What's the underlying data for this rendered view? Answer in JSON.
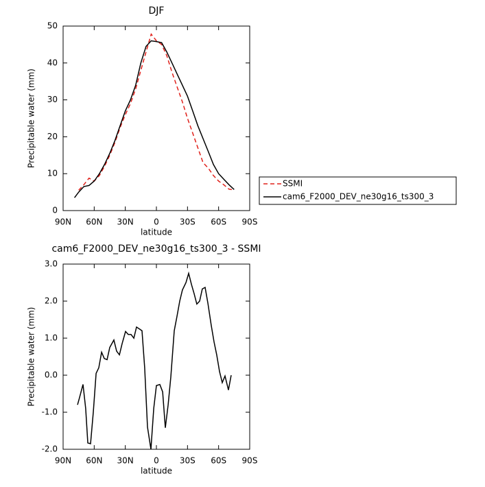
{
  "chart_data": [
    {
      "type": "line",
      "title": "DJF",
      "xlabel": "latitude",
      "ylabel": "Precipitable water (mm)",
      "x": [
        79,
        75,
        70,
        65,
        60,
        55,
        50,
        45,
        40,
        35,
        30,
        25,
        20,
        15,
        10,
        5,
        0,
        -5,
        -10,
        -15,
        -20,
        -25,
        -30,
        -35,
        -40,
        -45,
        -50,
        -55,
        -60,
        -65,
        -70,
        -75
      ],
      "series": [
        {
          "name": "SSMI",
          "color": "#e0201a",
          "dash": true,
          "values": [
            null,
            5.5,
            7,
            8.8,
            8,
            9.5,
            12,
            15,
            18.5,
            22.5,
            26,
            29,
            33,
            38,
            43,
            47.8,
            46,
            45,
            42,
            37.5,
            33.5,
            29.5,
            25,
            21,
            17,
            13,
            11.5,
            9.5,
            8,
            7,
            5.8,
            5.6
          ]
        },
        {
          "name": "cam6_F2000_DEV_ne30g16_ts300_3",
          "color": "#000000",
          "dash": false,
          "values": [
            3.5,
            5,
            6.5,
            6.8,
            8,
            10,
            12.5,
            15.5,
            19,
            23,
            27,
            30,
            34,
            40,
            44.5,
            46,
            45.8,
            45.5,
            43,
            40,
            37,
            34,
            31,
            27,
            23,
            19.5,
            16,
            12.5,
            10,
            8.5,
            7,
            5.7
          ]
        }
      ],
      "xlim": [
        90,
        -90
      ],
      "xticks": [
        {
          "value": 90,
          "label": "90N"
        },
        {
          "value": 60,
          "label": "60N"
        },
        {
          "value": 30,
          "label": "30N"
        },
        0,
        {
          "value": -30,
          "label": "30S"
        },
        {
          "value": -60,
          "label": "60S"
        },
        {
          "value": -90,
          "label": "90S"
        }
      ],
      "ylim": [
        0,
        50
      ],
      "yticks": [
        0,
        10,
        20,
        30,
        40,
        50
      ],
      "legend": "right"
    },
    {
      "type": "line",
      "title": "cam6_F2000_DEV_ne30g16_ts300_3 - SSMI",
      "xlabel": "latitude",
      "ylabel": "Precipitable water (mm)",
      "x": [
        76.1,
        74.1,
        70.8,
        68.2,
        66.2,
        63.5,
        60.9,
        58.2,
        55.6,
        52.9,
        50.3,
        47.6,
        45.0,
        41.0,
        38.4,
        35.7,
        33.1,
        29.8,
        27.1,
        24.5,
        21.8,
        19.2,
        16.5,
        13.9,
        11.3,
        8.6,
        5.3,
        2.6,
        0,
        -3.3,
        -6.0,
        -8.6,
        -11.3,
        -13.9,
        -17.2,
        -19.9,
        -22.5,
        -25.1,
        -28.5,
        -31.1,
        -33.8,
        -36.4,
        -39.0,
        -41.7,
        -44.3,
        -47.0,
        -49.6,
        -52.9,
        -55.6,
        -58.2,
        -60.9,
        -63.5,
        -66.2,
        -69.5,
        -72.1
      ],
      "series": [
        {
          "color": "#000000",
          "dash": false,
          "values": [
            -0.8,
            -0.6,
            -0.25,
            -0.9,
            -1.83,
            -1.85,
            -1.0,
            0.05,
            0.2,
            0.62,
            0.45,
            0.42,
            0.75,
            0.95,
            0.65,
            0.55,
            0.85,
            1.18,
            1.1,
            1.1,
            1.0,
            1.3,
            1.25,
            1.2,
            0.2,
            -1.4,
            -2.0,
            -0.9,
            -0.28,
            -0.25,
            -0.45,
            -1.42,
            -0.8,
            -0.05,
            1.2,
            1.6,
            2.0,
            2.3,
            2.5,
            2.75,
            2.45,
            2.2,
            1.92,
            2.0,
            2.33,
            2.37,
            1.95,
            1.35,
            0.9,
            0.55,
            0.1,
            -0.2,
            -0.02,
            -0.4,
            0.0
          ]
        }
      ],
      "xlim": [
        90,
        -90
      ],
      "xticks": [
        {
          "value": 90,
          "label": "90N"
        },
        {
          "value": 60,
          "label": "60N"
        },
        {
          "value": 30,
          "label": "30N"
        },
        0,
        {
          "value": -30,
          "label": "30S"
        },
        {
          "value": -60,
          "label": "60S"
        },
        {
          "value": -90,
          "label": "90S"
        }
      ],
      "ylim": [
        -2,
        3
      ],
      "yticks": [
        {
          "value": -2,
          "label": "-2.0"
        },
        {
          "value": -1,
          "label": "-1.0"
        },
        {
          "value": 0,
          "label": "0.0"
        },
        {
          "value": 1,
          "label": "1.0"
        },
        {
          "value": 2,
          "label": "2.0"
        },
        {
          "value": 3,
          "label": "3.0"
        }
      ]
    }
  ]
}
